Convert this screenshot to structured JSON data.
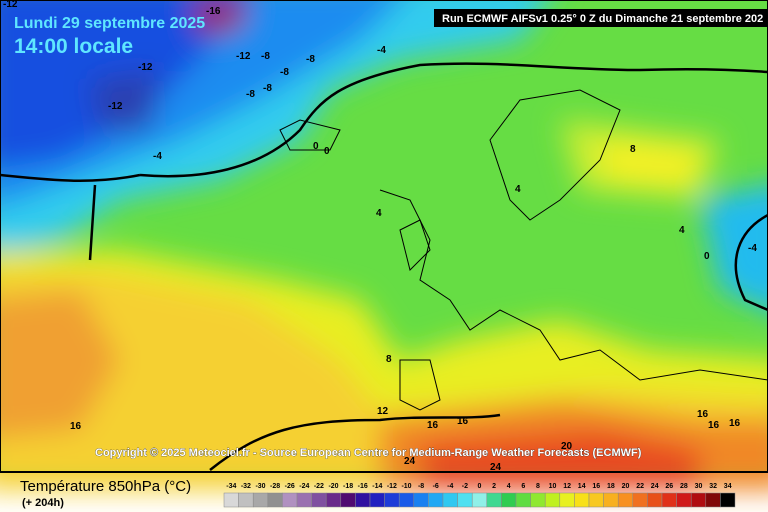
{
  "header": {
    "date": "Lundi 29 septembre 2025",
    "time": "14:00 locale",
    "run": "Run ECMWF AIFSv1 0.25° 0 Z du Dimanche 21 septembre 202"
  },
  "map": {
    "contour_labels": [
      -16,
      -12,
      -12,
      -12,
      -12,
      -8,
      -8,
      -8,
      -8,
      -8,
      -4,
      -4,
      0,
      0,
      4,
      4,
      8,
      4,
      0,
      -4,
      8,
      12,
      16,
      16,
      16,
      16,
      16,
      16,
      20,
      24,
      24
    ]
  },
  "copyright": "Copyright © 2025 Meteociel.fr - Source European Centre for Medium-Range Weather Forecasts (ECMWF)",
  "legend": {
    "title": "Température 850hPa (°C)",
    "lead": "(+ 204h)",
    "ticks": [
      -34,
      -32,
      -30,
      -28,
      -26,
      -24,
      -22,
      -20,
      -18,
      -16,
      -14,
      -12,
      -10,
      -8,
      -6,
      -4,
      -2,
      0,
      2,
      4,
      6,
      8,
      10,
      12,
      14,
      16,
      18,
      20,
      22,
      24,
      26,
      28,
      30,
      32,
      34
    ]
  }
}
